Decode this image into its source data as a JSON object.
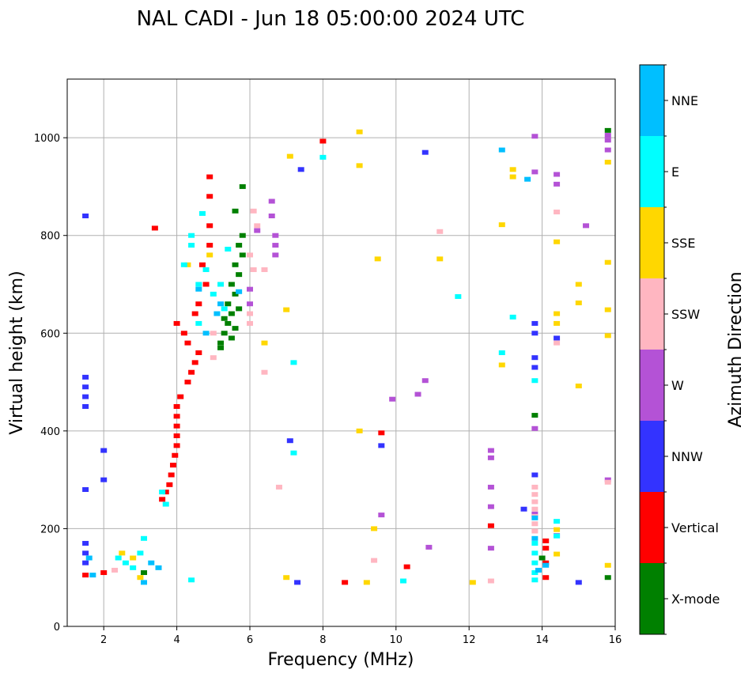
{
  "chart_data": {
    "type": "scatter",
    "title": "NAL CADI - Jun 18 05:00:00 2024 UTC",
    "xlabel": "Frequency (MHz)",
    "ylabel": "Virtual height (km)",
    "xlim": [
      1,
      16
    ],
    "ylim": [
      0,
      1120
    ],
    "grid": true,
    "x_ticks": [
      2,
      4,
      6,
      8,
      10,
      12,
      14,
      16
    ],
    "y_ticks": [
      0,
      200,
      400,
      600,
      800,
      1000
    ],
    "colorbar": {
      "label": "Azimuth Direction",
      "categories": [
        {
          "name": "X-mode",
          "color": "#008000"
        },
        {
          "name": "Vertical",
          "color": "#ff0000"
        },
        {
          "name": "NNW",
          "color": "#3333ff"
        },
        {
          "name": "W",
          "color": "#b452d6"
        },
        {
          "name": "SSW",
          "color": "#ffb6c1"
        },
        {
          "name": "SSE",
          "color": "#ffd700"
        },
        {
          "name": "E",
          "color": "#00ffff"
        },
        {
          "name": "NNE",
          "color": "#00bfff"
        }
      ]
    },
    "series": [
      {
        "name": "X-mode",
        "points": [
          [
            5.2,
            580
          ],
          [
            5.3,
            600
          ],
          [
            5.4,
            620
          ],
          [
            5.5,
            640
          ],
          [
            5.4,
            660
          ],
          [
            5.6,
            680
          ],
          [
            5.5,
            700
          ],
          [
            5.7,
            720
          ],
          [
            5.6,
            740
          ],
          [
            5.8,
            760
          ],
          [
            5.7,
            780
          ],
          [
            5.8,
            800
          ],
          [
            5.6,
            850
          ],
          [
            5.8,
            900
          ],
          [
            5.2,
            570
          ],
          [
            5.5,
            590
          ],
          [
            5.6,
            610
          ],
          [
            5.3,
            630
          ],
          [
            5.7,
            650
          ],
          [
            13.8,
            432
          ],
          [
            15.8,
            1015
          ],
          [
            15.8,
            100
          ],
          [
            14.0,
            140
          ],
          [
            3.1,
            110
          ]
        ]
      },
      {
        "name": "Vertical",
        "points": [
          [
            3.6,
            260
          ],
          [
            3.7,
            275
          ],
          [
            3.8,
            290
          ],
          [
            3.85,
            310
          ],
          [
            3.9,
            330
          ],
          [
            3.95,
            350
          ],
          [
            4.0,
            370
          ],
          [
            4.0,
            390
          ],
          [
            4.0,
            410
          ],
          [
            4.0,
            430
          ],
          [
            4.0,
            450
          ],
          [
            4.1,
            470
          ],
          [
            4.3,
            500
          ],
          [
            4.4,
            520
          ],
          [
            4.5,
            540
          ],
          [
            4.6,
            560
          ],
          [
            4.3,
            580
          ],
          [
            4.2,
            600
          ],
          [
            4.0,
            620
          ],
          [
            4.5,
            640
          ],
          [
            4.6,
            660
          ],
          [
            4.8,
            700
          ],
          [
            4.7,
            740
          ],
          [
            4.9,
            780
          ],
          [
            4.9,
            820
          ],
          [
            4.9,
            880
          ],
          [
            4.9,
            920
          ],
          [
            8.0,
            993
          ],
          [
            10.3,
            122
          ],
          [
            9.6,
            396
          ],
          [
            12.6,
            206
          ],
          [
            14.1,
            100
          ],
          [
            14.1,
            130
          ],
          [
            14.1,
            160
          ],
          [
            14.1,
            175
          ],
          [
            8.6,
            90
          ],
          [
            1.5,
            105
          ],
          [
            2.0,
            110
          ],
          [
            3.4,
            815
          ]
        ]
      },
      {
        "name": "NNW",
        "points": [
          [
            1.5,
            450
          ],
          [
            1.5,
            470
          ],
          [
            1.5,
            490
          ],
          [
            1.5,
            510
          ],
          [
            1.5,
            840
          ],
          [
            1.5,
            280
          ],
          [
            1.5,
            170
          ],
          [
            1.5,
            150
          ],
          [
            1.5,
            130
          ],
          [
            13.8,
            620
          ],
          [
            13.8,
            600
          ],
          [
            13.8,
            550
          ],
          [
            13.8,
            530
          ],
          [
            13.8,
            310
          ],
          [
            13.5,
            240
          ],
          [
            14.4,
            590
          ],
          [
            15.0,
            90
          ],
          [
            7.4,
            935
          ],
          [
            7.3,
            90
          ],
          [
            9.6,
            370
          ],
          [
            7.1,
            380
          ],
          [
            10.8,
            970
          ],
          [
            2.0,
            300
          ],
          [
            2.0,
            360
          ]
        ]
      },
      {
        "name": "W",
        "points": [
          [
            6.7,
            800
          ],
          [
            6.7,
            780
          ],
          [
            6.7,
            760
          ],
          [
            6.6,
            840
          ],
          [
            6.6,
            870
          ],
          [
            6.2,
            810
          ],
          [
            6.0,
            690
          ],
          [
            6.0,
            660
          ],
          [
            13.8,
            1003
          ],
          [
            13.8,
            930
          ],
          [
            14.4,
            925
          ],
          [
            14.4,
            905
          ],
          [
            13.8,
            405
          ],
          [
            13.8,
            230
          ],
          [
            12.6,
            360
          ],
          [
            12.6,
            345
          ],
          [
            12.6,
            285
          ],
          [
            12.6,
            245
          ],
          [
            12.6,
            160
          ],
          [
            15.8,
            1005
          ],
          [
            15.8,
            995
          ],
          [
            15.8,
            975
          ],
          [
            15.8,
            300
          ],
          [
            15.2,
            820
          ],
          [
            10.8,
            503
          ],
          [
            10.6,
            475
          ],
          [
            9.9,
            465
          ],
          [
            9.6,
            228
          ],
          [
            10.9,
            162
          ],
          [
            14.4,
            186
          ]
        ]
      },
      {
        "name": "SSW",
        "points": [
          [
            6.1,
            850
          ],
          [
            6.2,
            820
          ],
          [
            6.0,
            760
          ],
          [
            6.1,
            730
          ],
          [
            6.4,
            730
          ],
          [
            6.0,
            640
          ],
          [
            6.0,
            620
          ],
          [
            5.0,
            550
          ],
          [
            5.0,
            600
          ],
          [
            11.2,
            808
          ],
          [
            14.4,
            848
          ],
          [
            14.4,
            580
          ],
          [
            13.8,
            285
          ],
          [
            13.8,
            270
          ],
          [
            13.8,
            255
          ],
          [
            13.8,
            240
          ],
          [
            13.8,
            225
          ],
          [
            13.8,
            210
          ],
          [
            13.8,
            195
          ],
          [
            12.6,
            93
          ],
          [
            9.4,
            135
          ],
          [
            15.8,
            295
          ],
          [
            6.4,
            520
          ],
          [
            6.8,
            285
          ],
          [
            2.3,
            115
          ]
        ]
      },
      {
        "name": "SSE",
        "points": [
          [
            9.0,
            1012
          ],
          [
            9.0,
            943
          ],
          [
            12.9,
            822
          ],
          [
            13.2,
            935
          ],
          [
            13.2,
            920
          ],
          [
            14.4,
            787
          ],
          [
            14.4,
            640
          ],
          [
            14.4,
            620
          ],
          [
            12.9,
            535
          ],
          [
            15.8,
            950
          ],
          [
            15.8,
            745
          ],
          [
            15.8,
            648
          ],
          [
            15.8,
            595
          ],
          [
            15.0,
            700
          ],
          [
            15.0,
            662
          ],
          [
            15.0,
            492
          ],
          [
            15.8,
            125
          ],
          [
            14.4,
            198
          ],
          [
            14.4,
            148
          ],
          [
            9.5,
            752
          ],
          [
            11.2,
            752
          ],
          [
            9.0,
            400
          ],
          [
            9.4,
            200
          ],
          [
            7.1,
            962
          ],
          [
            7.0,
            648
          ],
          [
            6.4,
            580
          ],
          [
            12.1,
            90
          ],
          [
            9.2,
            90
          ],
          [
            7.0,
            100
          ],
          [
            4.3,
            740
          ],
          [
            4.9,
            760
          ],
          [
            2.5,
            150
          ],
          [
            2.8,
            140
          ],
          [
            3.0,
            100
          ]
        ]
      },
      {
        "name": "E",
        "points": [
          [
            4.4,
            780
          ],
          [
            4.4,
            800
          ],
          [
            4.6,
            700
          ],
          [
            4.8,
            730
          ],
          [
            5.0,
            680
          ],
          [
            5.2,
            700
          ],
          [
            5.3,
            650
          ],
          [
            4.6,
            620
          ],
          [
            4.2,
            740
          ],
          [
            4.7,
            845
          ],
          [
            5.4,
            772
          ],
          [
            8.0,
            960
          ],
          [
            11.7,
            675
          ],
          [
            12.9,
            560
          ],
          [
            13.2,
            633
          ],
          [
            13.8,
            503
          ],
          [
            14.4,
            215
          ],
          [
            14.4,
            185
          ],
          [
            13.8,
            170
          ],
          [
            13.8,
            150
          ],
          [
            13.8,
            130
          ],
          [
            13.8,
            110
          ],
          [
            13.8,
            95
          ],
          [
            10.2,
            93
          ],
          [
            7.2,
            540
          ],
          [
            7.2,
            355
          ],
          [
            4.4,
            95
          ],
          [
            2.4,
            140
          ],
          [
            2.6,
            130
          ],
          [
            2.8,
            120
          ],
          [
            3.0,
            150
          ],
          [
            3.1,
            180
          ],
          [
            3.6,
            275
          ],
          [
            3.7,
            250
          ]
        ]
      },
      {
        "name": "NNE",
        "points": [
          [
            4.6,
            690
          ],
          [
            4.8,
            600
          ],
          [
            5.1,
            640
          ],
          [
            5.2,
            660
          ],
          [
            5.7,
            685
          ],
          [
            13.8,
            222
          ],
          [
            13.8,
            180
          ],
          [
            13.9,
            115
          ],
          [
            14.1,
            125
          ],
          [
            12.9,
            975
          ],
          [
            13.6,
            915
          ],
          [
            1.7,
            105
          ],
          [
            3.1,
            90
          ],
          [
            3.3,
            130
          ],
          [
            3.5,
            120
          ],
          [
            1.6,
            140
          ]
        ]
      }
    ]
  }
}
